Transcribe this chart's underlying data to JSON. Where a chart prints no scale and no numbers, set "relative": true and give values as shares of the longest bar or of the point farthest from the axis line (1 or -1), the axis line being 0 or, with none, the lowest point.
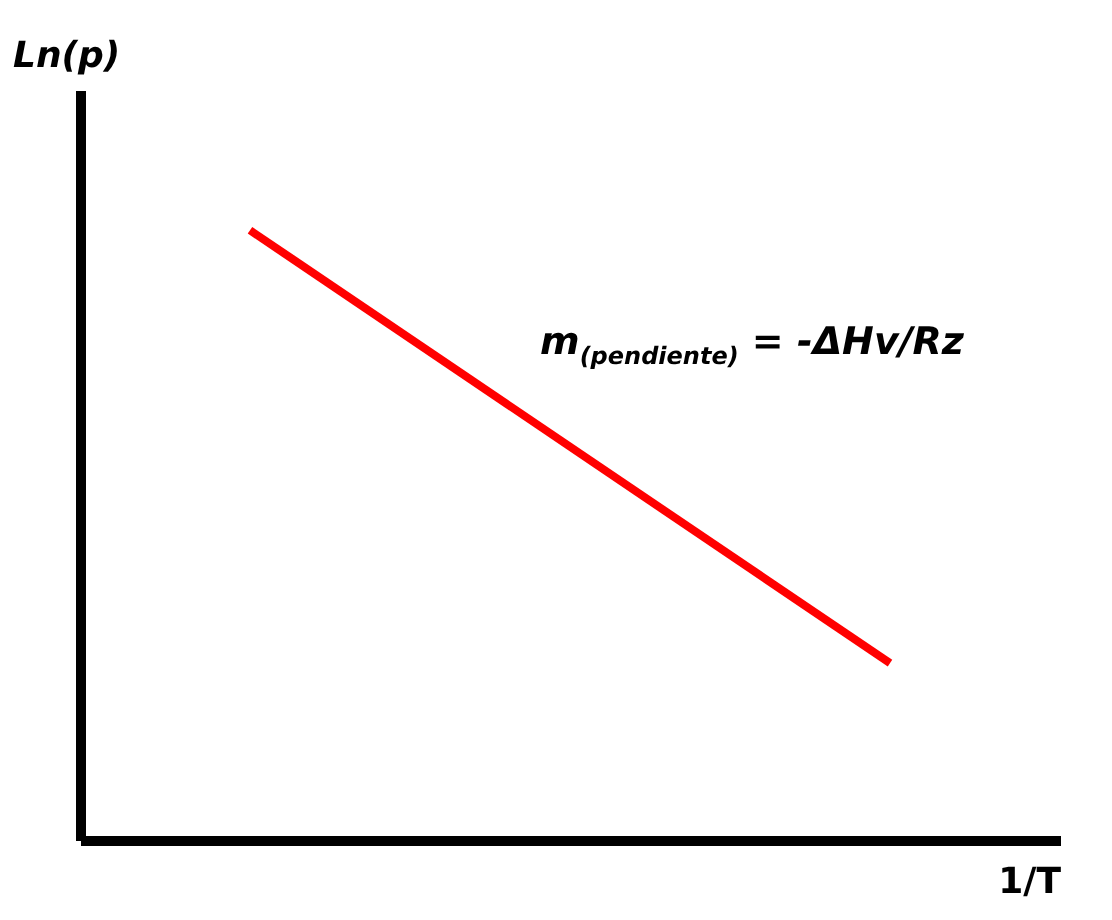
{
  "chart_data": {
    "type": "line",
    "relative": true,
    "categories": [
      null,
      null
    ],
    "series": [
      {
        "color": "#ff0000",
        "values": [
          1,
          0.29
        ]
      }
    ],
    "xlabel": "1/T",
    "ylabel": "Ln(p)",
    "grid": false,
    "legend": false,
    "marker": "none",
    "line_style": "solid",
    "annotations": [
      "m$_{(pendiente)}$ = -ΔHv/Rz"
    ]
  }
}
